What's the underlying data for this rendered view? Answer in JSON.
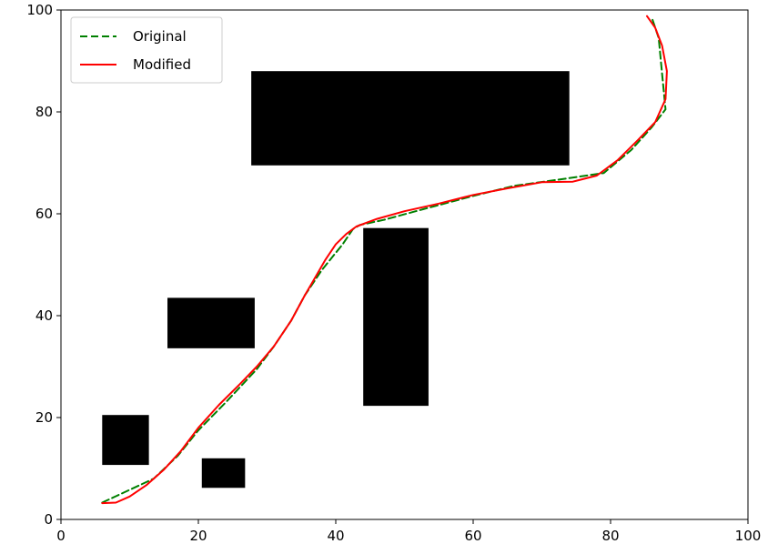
{
  "chart_data": {
    "type": "line",
    "title": "",
    "xlabel": "",
    "ylabel": "",
    "xlim": [
      0,
      100
    ],
    "ylim": [
      0,
      100
    ],
    "xticks": [
      0,
      20,
      40,
      60,
      80,
      100
    ],
    "yticks": [
      0,
      20,
      40,
      60,
      80,
      100
    ],
    "grid": false,
    "legend": {
      "placement": "top-left",
      "entries": [
        {
          "name": "Original",
          "color": "#008000",
          "style": "dashed"
        },
        {
          "name": "Modified",
          "color": "#ff0000",
          "style": "solid"
        }
      ]
    },
    "obstacles": [
      {
        "x0": 27.7,
        "x1": 74.0,
        "y0": 69.5,
        "y1": 88.0
      },
      {
        "x0": 44.0,
        "x1": 53.5,
        "y0": 22.3,
        "y1": 57.2
      },
      {
        "x0": 15.5,
        "x1": 28.2,
        "y0": 33.6,
        "y1": 43.5
      },
      {
        "x0": 6.0,
        "x1": 12.8,
        "y0": 10.7,
        "y1": 20.5
      },
      {
        "x0": 20.5,
        "x1": 26.8,
        "y0": 6.2,
        "y1": 12.0
      }
    ],
    "series": [
      {
        "name": "Original",
        "color": "#008000",
        "style": "dashed",
        "points": [
          [
            6.0,
            3.3
          ],
          [
            13.5,
            8.0
          ],
          [
            17.0,
            12.5
          ],
          [
            20.0,
            17.5
          ],
          [
            24.0,
            23.0
          ],
          [
            28.5,
            29.5
          ],
          [
            31.0,
            34.0
          ],
          [
            33.5,
            39.0
          ],
          [
            35.5,
            44.0
          ],
          [
            38.0,
            49.0
          ],
          [
            41.0,
            54.0
          ],
          [
            42.5,
            57.0
          ],
          [
            43.5,
            57.8
          ],
          [
            47.0,
            58.8
          ],
          [
            53.0,
            61.0
          ],
          [
            60.0,
            63.5
          ],
          [
            66.0,
            65.5
          ],
          [
            73.0,
            66.8
          ],
          [
            79.0,
            68.0
          ],
          [
            83.0,
            72.5
          ],
          [
            86.0,
            77.0
          ],
          [
            88.0,
            80.5
          ],
          [
            87.5,
            87.5
          ],
          [
            87.0,
            94.5
          ],
          [
            86.0,
            98.5
          ]
        ]
      },
      {
        "name": "Modified",
        "color": "#ff0000",
        "style": "solid",
        "points": [
          [
            6.0,
            3.2
          ],
          [
            8.0,
            3.3
          ],
          [
            10.0,
            4.5
          ],
          [
            12.5,
            6.8
          ],
          [
            15.0,
            9.8
          ],
          [
            17.5,
            13.5
          ],
          [
            20.0,
            18.0
          ],
          [
            23.0,
            22.5
          ],
          [
            26.0,
            26.5
          ],
          [
            28.5,
            30.0
          ],
          [
            31.0,
            34.0
          ],
          [
            33.5,
            39.0
          ],
          [
            35.5,
            44.0
          ],
          [
            37.0,
            47.5
          ],
          [
            38.5,
            51.0
          ],
          [
            40.0,
            54.0
          ],
          [
            41.5,
            56.0
          ],
          [
            43.0,
            57.5
          ],
          [
            46.0,
            59.0
          ],
          [
            50.0,
            60.5
          ],
          [
            55.0,
            62.0
          ],
          [
            60.0,
            63.7
          ],
          [
            65.0,
            65.0
          ],
          [
            70.0,
            66.2
          ],
          [
            74.5,
            66.3
          ],
          [
            78.0,
            67.5
          ],
          [
            81.0,
            70.5
          ],
          [
            84.0,
            74.5
          ],
          [
            86.5,
            78.0
          ],
          [
            88.0,
            82.5
          ],
          [
            88.2,
            88.0
          ],
          [
            87.5,
            93.0
          ],
          [
            86.5,
            96.5
          ],
          [
            85.3,
            98.8
          ]
        ]
      }
    ]
  }
}
